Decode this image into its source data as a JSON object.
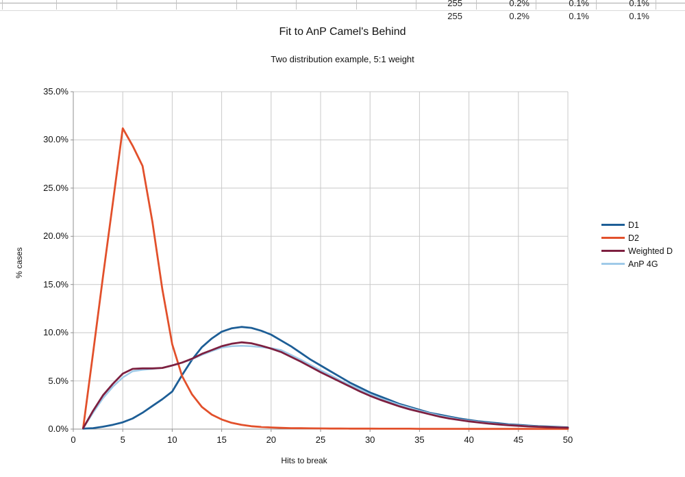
{
  "spreadsheet": {
    "row1_values": [
      "255",
      "0.2%",
      "0.1%",
      "0.1%"
    ],
    "row2_values_partially_visible": [
      "255",
      "0.2%",
      "0.1%",
      "0.1%"
    ]
  },
  "chart": {
    "title": "Fit to AnP Camel's Behind",
    "subtitle": "Two distribution example, 5:1 weight",
    "x_axis": {
      "title": "Hits to break",
      "ticks": [
        "0",
        "5",
        "10",
        "15",
        "20",
        "25",
        "30",
        "35",
        "40",
        "45",
        "50"
      ]
    },
    "y_axis": {
      "title": "% cases",
      "ticks": [
        "35.0%",
        "30.0%",
        "25.0%",
        "20.0%",
        "15.0%",
        "10.0%",
        "5.0%",
        "0.0%"
      ]
    }
  },
  "chart_data": {
    "type": "line",
    "title": "Fit to AnP Camel's Behind",
    "subtitle": "Two distribution example, 5:1 weight",
    "xlabel": "Hits to break",
    "ylabel": "% cases",
    "xlim": [
      0,
      50
    ],
    "ylim_percent": [
      0,
      35
    ],
    "grid": true,
    "legend_position": "right",
    "x": [
      1,
      2,
      3,
      4,
      5,
      6,
      7,
      8,
      9,
      10,
      11,
      12,
      13,
      14,
      15,
      16,
      17,
      18,
      19,
      20,
      21,
      22,
      23,
      24,
      25,
      26,
      27,
      28,
      29,
      30,
      31,
      32,
      33,
      34,
      35,
      36,
      37,
      38,
      39,
      40,
      41,
      42,
      43,
      44,
      45,
      46,
      47,
      48,
      49,
      50
    ],
    "draw_order": [
      0,
      1,
      3,
      2
    ],
    "series": [
      {
        "name": "D1",
        "color": "#1d5e96",
        "width": 2.8,
        "values_percent": [
          0.05,
          0.1,
          0.25,
          0.45,
          0.7,
          1.1,
          1.7,
          2.4,
          3.1,
          3.9,
          5.6,
          7.2,
          8.5,
          9.4,
          10.1,
          10.45,
          10.6,
          10.5,
          10.2,
          9.8,
          9.2,
          8.6,
          7.9,
          7.2,
          6.6,
          6.0,
          5.4,
          4.8,
          4.3,
          3.8,
          3.4,
          3.0,
          2.6,
          2.3,
          2.0,
          1.7,
          1.5,
          1.3,
          1.1,
          0.95,
          0.8,
          0.7,
          0.6,
          0.5,
          0.43,
          0.36,
          0.3,
          0.26,
          0.22,
          0.18
        ]
      },
      {
        "name": "D2",
        "color": "#e2502b",
        "width": 2.8,
        "values_percent": [
          0.1,
          7.9,
          15.8,
          23.5,
          31.2,
          29.4,
          27.3,
          21.5,
          14.5,
          8.8,
          5.5,
          3.6,
          2.3,
          1.5,
          1.0,
          0.65,
          0.45,
          0.3,
          0.22,
          0.17,
          0.13,
          0.1,
          0.09,
          0.08,
          0.07,
          0.06,
          0.06,
          0.05,
          0.05,
          0.05,
          0.04,
          0.04,
          0.04,
          0.04,
          0.03,
          0.03,
          0.03,
          0.03,
          0.03,
          0.02,
          0.02,
          0.02,
          0.02,
          0.02,
          0.02,
          0.02,
          0.02,
          0.02,
          0.02,
          0.02
        ]
      },
      {
        "name": "Weighted D",
        "color": "#7d2040",
        "width": 2.8,
        "values_percent": [
          0.1,
          1.9,
          3.5,
          4.7,
          5.75,
          6.25,
          6.3,
          6.3,
          6.35,
          6.6,
          6.9,
          7.3,
          7.8,
          8.2,
          8.6,
          8.85,
          9.0,
          8.9,
          8.65,
          8.35,
          8.0,
          7.5,
          7.0,
          6.45,
          5.9,
          5.4,
          4.9,
          4.4,
          3.9,
          3.45,
          3.05,
          2.7,
          2.35,
          2.05,
          1.8,
          1.55,
          1.3,
          1.1,
          0.95,
          0.8,
          0.68,
          0.57,
          0.48,
          0.4,
          0.34,
          0.28,
          0.24,
          0.2,
          0.17,
          0.14
        ]
      },
      {
        "name": "AnP 4G",
        "color": "#9fcae8",
        "width": 2.5,
        "values_percent": [
          0.1,
          1.7,
          3.2,
          4.4,
          5.35,
          6.0,
          6.15,
          6.25,
          6.35,
          6.6,
          6.9,
          7.25,
          7.7,
          8.1,
          8.45,
          8.6,
          8.65,
          8.6,
          8.5,
          8.4,
          8.2,
          7.7,
          7.2,
          6.65,
          6.1,
          5.6,
          5.05,
          4.55,
          4.1,
          3.6,
          3.2,
          2.85,
          2.5,
          2.2,
          1.9,
          1.65,
          1.4,
          1.2,
          1.0,
          0.87,
          0.74,
          0.62,
          0.52,
          0.44,
          0.37,
          0.31,
          0.26,
          0.22,
          0.19,
          0.16
        ]
      }
    ]
  }
}
